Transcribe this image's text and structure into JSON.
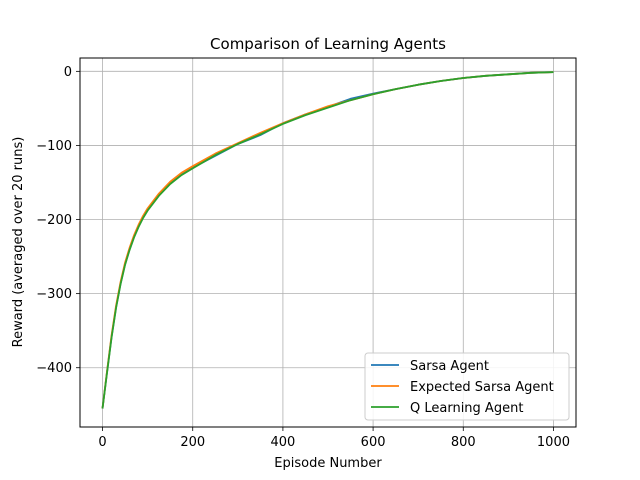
{
  "chart_data": {
    "type": "line",
    "title": "Comparison of Learning Agents",
    "xlabel": "Episode Number",
    "ylabel": "Reward (averaged over 20 runs)",
    "xlim": [
      -50,
      1050
    ],
    "ylim": [
      -480,
      18
    ],
    "xticks": [
      0,
      200,
      400,
      600,
      800,
      1000
    ],
    "yticks": [
      -400,
      -300,
      -200,
      -100,
      0
    ],
    "xtick_labels": [
      "0",
      "200",
      "400",
      "600",
      "800",
      "1000"
    ],
    "ytick_labels": [
      "−400",
      "−300",
      "−200",
      "−100",
      "0"
    ],
    "grid": true,
    "legend_position": "lower-right",
    "x": [
      0,
      10,
      20,
      30,
      40,
      50,
      60,
      70,
      80,
      90,
      100,
      125,
      150,
      175,
      200,
      250,
      300,
      350,
      400,
      450,
      500,
      550,
      600,
      650,
      700,
      750,
      800,
      850,
      900,
      950,
      1000
    ],
    "series": [
      {
        "name": "Sarsa Agent",
        "color": "#1f77b4",
        "values": [
          -455,
          -405,
          -358,
          -318,
          -286,
          -260,
          -240,
          -223,
          -209,
          -197,
          -187,
          -167,
          -151,
          -139,
          -130,
          -114,
          -98,
          -86,
          -70,
          -58,
          -48,
          -37,
          -30,
          -24,
          -18,
          -13,
          -9,
          -6,
          -4,
          -2,
          -1
        ]
      },
      {
        "name": "Expected Sarsa Agent",
        "color": "#ff7f0e",
        "values": [
          -455,
          -404,
          -356,
          -316,
          -284,
          -258,
          -238,
          -221,
          -207,
          -195,
          -185,
          -165,
          -149,
          -137,
          -128,
          -111,
          -97,
          -83,
          -70,
          -58,
          -47,
          -39,
          -31,
          -24,
          -18,
          -13,
          -9,
          -6,
          -4,
          -2,
          -1
        ]
      },
      {
        "name": "Q Learning Agent",
        "color": "#2ca02c",
        "values": [
          -455,
          -406,
          -359,
          -319,
          -287,
          -261,
          -241,
          -224,
          -210,
          -198,
          -188,
          -168,
          -152,
          -140,
          -131,
          -113,
          -98,
          -85,
          -71,
          -59,
          -49,
          -39,
          -31,
          -24,
          -18,
          -13,
          -9,
          -6,
          -4,
          -2,
          -1
        ]
      }
    ]
  }
}
